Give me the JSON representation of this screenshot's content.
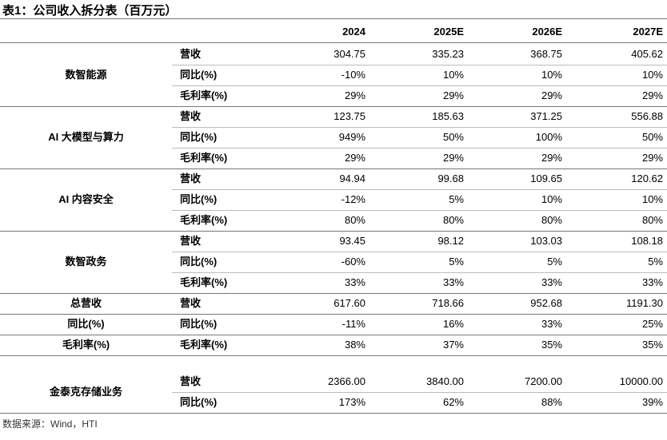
{
  "title": "表1：公司收入拆分表（百万元）",
  "table": {
    "header": [
      "2024",
      "2025E",
      "2026E",
      "2027E"
    ],
    "groups": [
      {
        "label": "数智能源",
        "rows": [
          {
            "label": "营收",
            "values": [
              "304.75",
              "335.23",
              "368.75",
              "405.62"
            ]
          },
          {
            "label": "同比(%)",
            "values": [
              "-10%",
              "10%",
              "10%",
              "10%"
            ]
          },
          {
            "label": "毛利率(%)",
            "values": [
              "29%",
              "29%",
              "29%",
              "29%"
            ]
          }
        ]
      },
      {
        "label": "AI 大模型与算力",
        "rows": [
          {
            "label": "营收",
            "values": [
              "123.75",
              "185.63",
              "371.25",
              "556.88"
            ]
          },
          {
            "label": "同比(%)",
            "values": [
              "949%",
              "50%",
              "100%",
              "50%"
            ]
          },
          {
            "label": "毛利率(%)",
            "values": [
              "29%",
              "29%",
              "29%",
              "29%"
            ]
          }
        ]
      },
      {
        "label": "AI 内容安全",
        "rows": [
          {
            "label": "营收",
            "values": [
              "94.94",
              "99.68",
              "109.65",
              "120.62"
            ]
          },
          {
            "label": "同比(%)",
            "values": [
              "-12%",
              "5%",
              "10%",
              "10%"
            ]
          },
          {
            "label": "毛利率(%)",
            "values": [
              "80%",
              "80%",
              "80%",
              "80%"
            ]
          }
        ]
      },
      {
        "label": "数智政务",
        "rows": [
          {
            "label": "营收",
            "values": [
              "93.45",
              "98.12",
              "103.03",
              "108.18"
            ]
          },
          {
            "label": "同比(%)",
            "values": [
              "-60%",
              "5%",
              "5%",
              "5%"
            ]
          },
          {
            "label": "毛利率(%)",
            "values": [
              "33%",
              "33%",
              "33%",
              "33%"
            ]
          }
        ]
      },
      {
        "label": "总营收",
        "rows": [
          {
            "label": "营收",
            "values": [
              "617.60",
              "718.66",
              "952.68",
              "1191.30"
            ]
          }
        ]
      },
      {
        "label": "同比(%)",
        "rows": [
          {
            "label": "同比(%)",
            "values": [
              "-11%",
              "16%",
              "33%",
              "25%"
            ]
          }
        ]
      },
      {
        "label": "毛利率(%)",
        "rows": [
          {
            "label": "毛利率(%)",
            "values": [
              "38%",
              "37%",
              "35%",
              "35%"
            ]
          }
        ]
      },
      {
        "label": "金泰克存储业务",
        "rows": [
          {
            "label": "营收",
            "values": [
              "2366.00",
              "3840.00",
              "7200.00",
              "10000.00"
            ]
          },
          {
            "label": "同比(%)",
            "values": [
              "173%",
              "62%",
              "88%",
              "39%"
            ]
          }
        ]
      }
    ]
  },
  "source": "数据来源：Wind，HTI"
}
